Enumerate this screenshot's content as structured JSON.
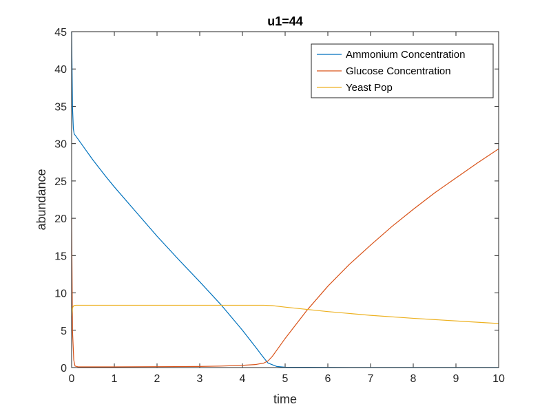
{
  "chart_data": {
    "type": "line",
    "title": "u1=44",
    "xlabel": "time",
    "ylabel": "abundance",
    "xlim": [
      0,
      10
    ],
    "ylim": [
      0,
      45
    ],
    "xticks": [
      0,
      1,
      2,
      3,
      4,
      5,
      6,
      7,
      8,
      9,
      10
    ],
    "yticks": [
      0,
      5,
      10,
      15,
      20,
      25,
      30,
      35,
      40,
      45
    ],
    "grid": false,
    "legend_position": "top-right",
    "series": [
      {
        "name": "Ammonium Concentration",
        "color": "#0072BD",
        "x": [
          0,
          0.01,
          0.02,
          0.04,
          0.06,
          0.1,
          0.3,
          0.5,
          0.8,
          1.0,
          1.5,
          2.0,
          2.5,
          3.0,
          3.5,
          4.0,
          4.3,
          4.5,
          4.6,
          4.8,
          5.0,
          6.0,
          7.0,
          8.0,
          9.0,
          10.0
        ],
        "y": [
          45,
          40,
          35,
          32,
          31.3,
          31.0,
          29.4,
          27.8,
          25.6,
          24.2,
          20.9,
          17.6,
          14.5,
          11.5,
          8.4,
          5.0,
          2.8,
          1.3,
          0.6,
          0.15,
          0.05,
          0.02,
          0.01,
          0.01,
          0.01,
          0.01
        ]
      },
      {
        "name": "Glucose Concentration",
        "color": "#D95319",
        "x": [
          0,
          0.02,
          0.05,
          0.08,
          0.15,
          0.5,
          1.0,
          2.0,
          3.0,
          3.5,
          4.0,
          4.3,
          4.5,
          4.6,
          4.7,
          4.8,
          5.0,
          5.5,
          6.0,
          6.5,
          7.0,
          7.5,
          8.0,
          8.5,
          9.0,
          9.5,
          10.0
        ],
        "y": [
          20,
          5,
          1,
          0.2,
          0.1,
          0.1,
          0.1,
          0.12,
          0.15,
          0.2,
          0.3,
          0.4,
          0.6,
          0.9,
          1.5,
          2.3,
          3.9,
          7.6,
          10.9,
          13.8,
          16.4,
          18.9,
          21.2,
          23.4,
          25.4,
          27.4,
          29.3
        ]
      },
      {
        "name": "Yeast Pop",
        "color": "#EDB120",
        "x": [
          0,
          0.02,
          0.05,
          0.1,
          1.0,
          2.0,
          3.0,
          4.0,
          4.5,
          4.7,
          5.0,
          5.5,
          6.0,
          7.0,
          8.0,
          9.0,
          10.0
        ],
        "y": [
          6.8,
          8.0,
          8.3,
          8.35,
          8.35,
          8.35,
          8.35,
          8.35,
          8.35,
          8.3,
          8.1,
          7.8,
          7.5,
          7.0,
          6.6,
          6.25,
          5.9
        ]
      }
    ]
  }
}
